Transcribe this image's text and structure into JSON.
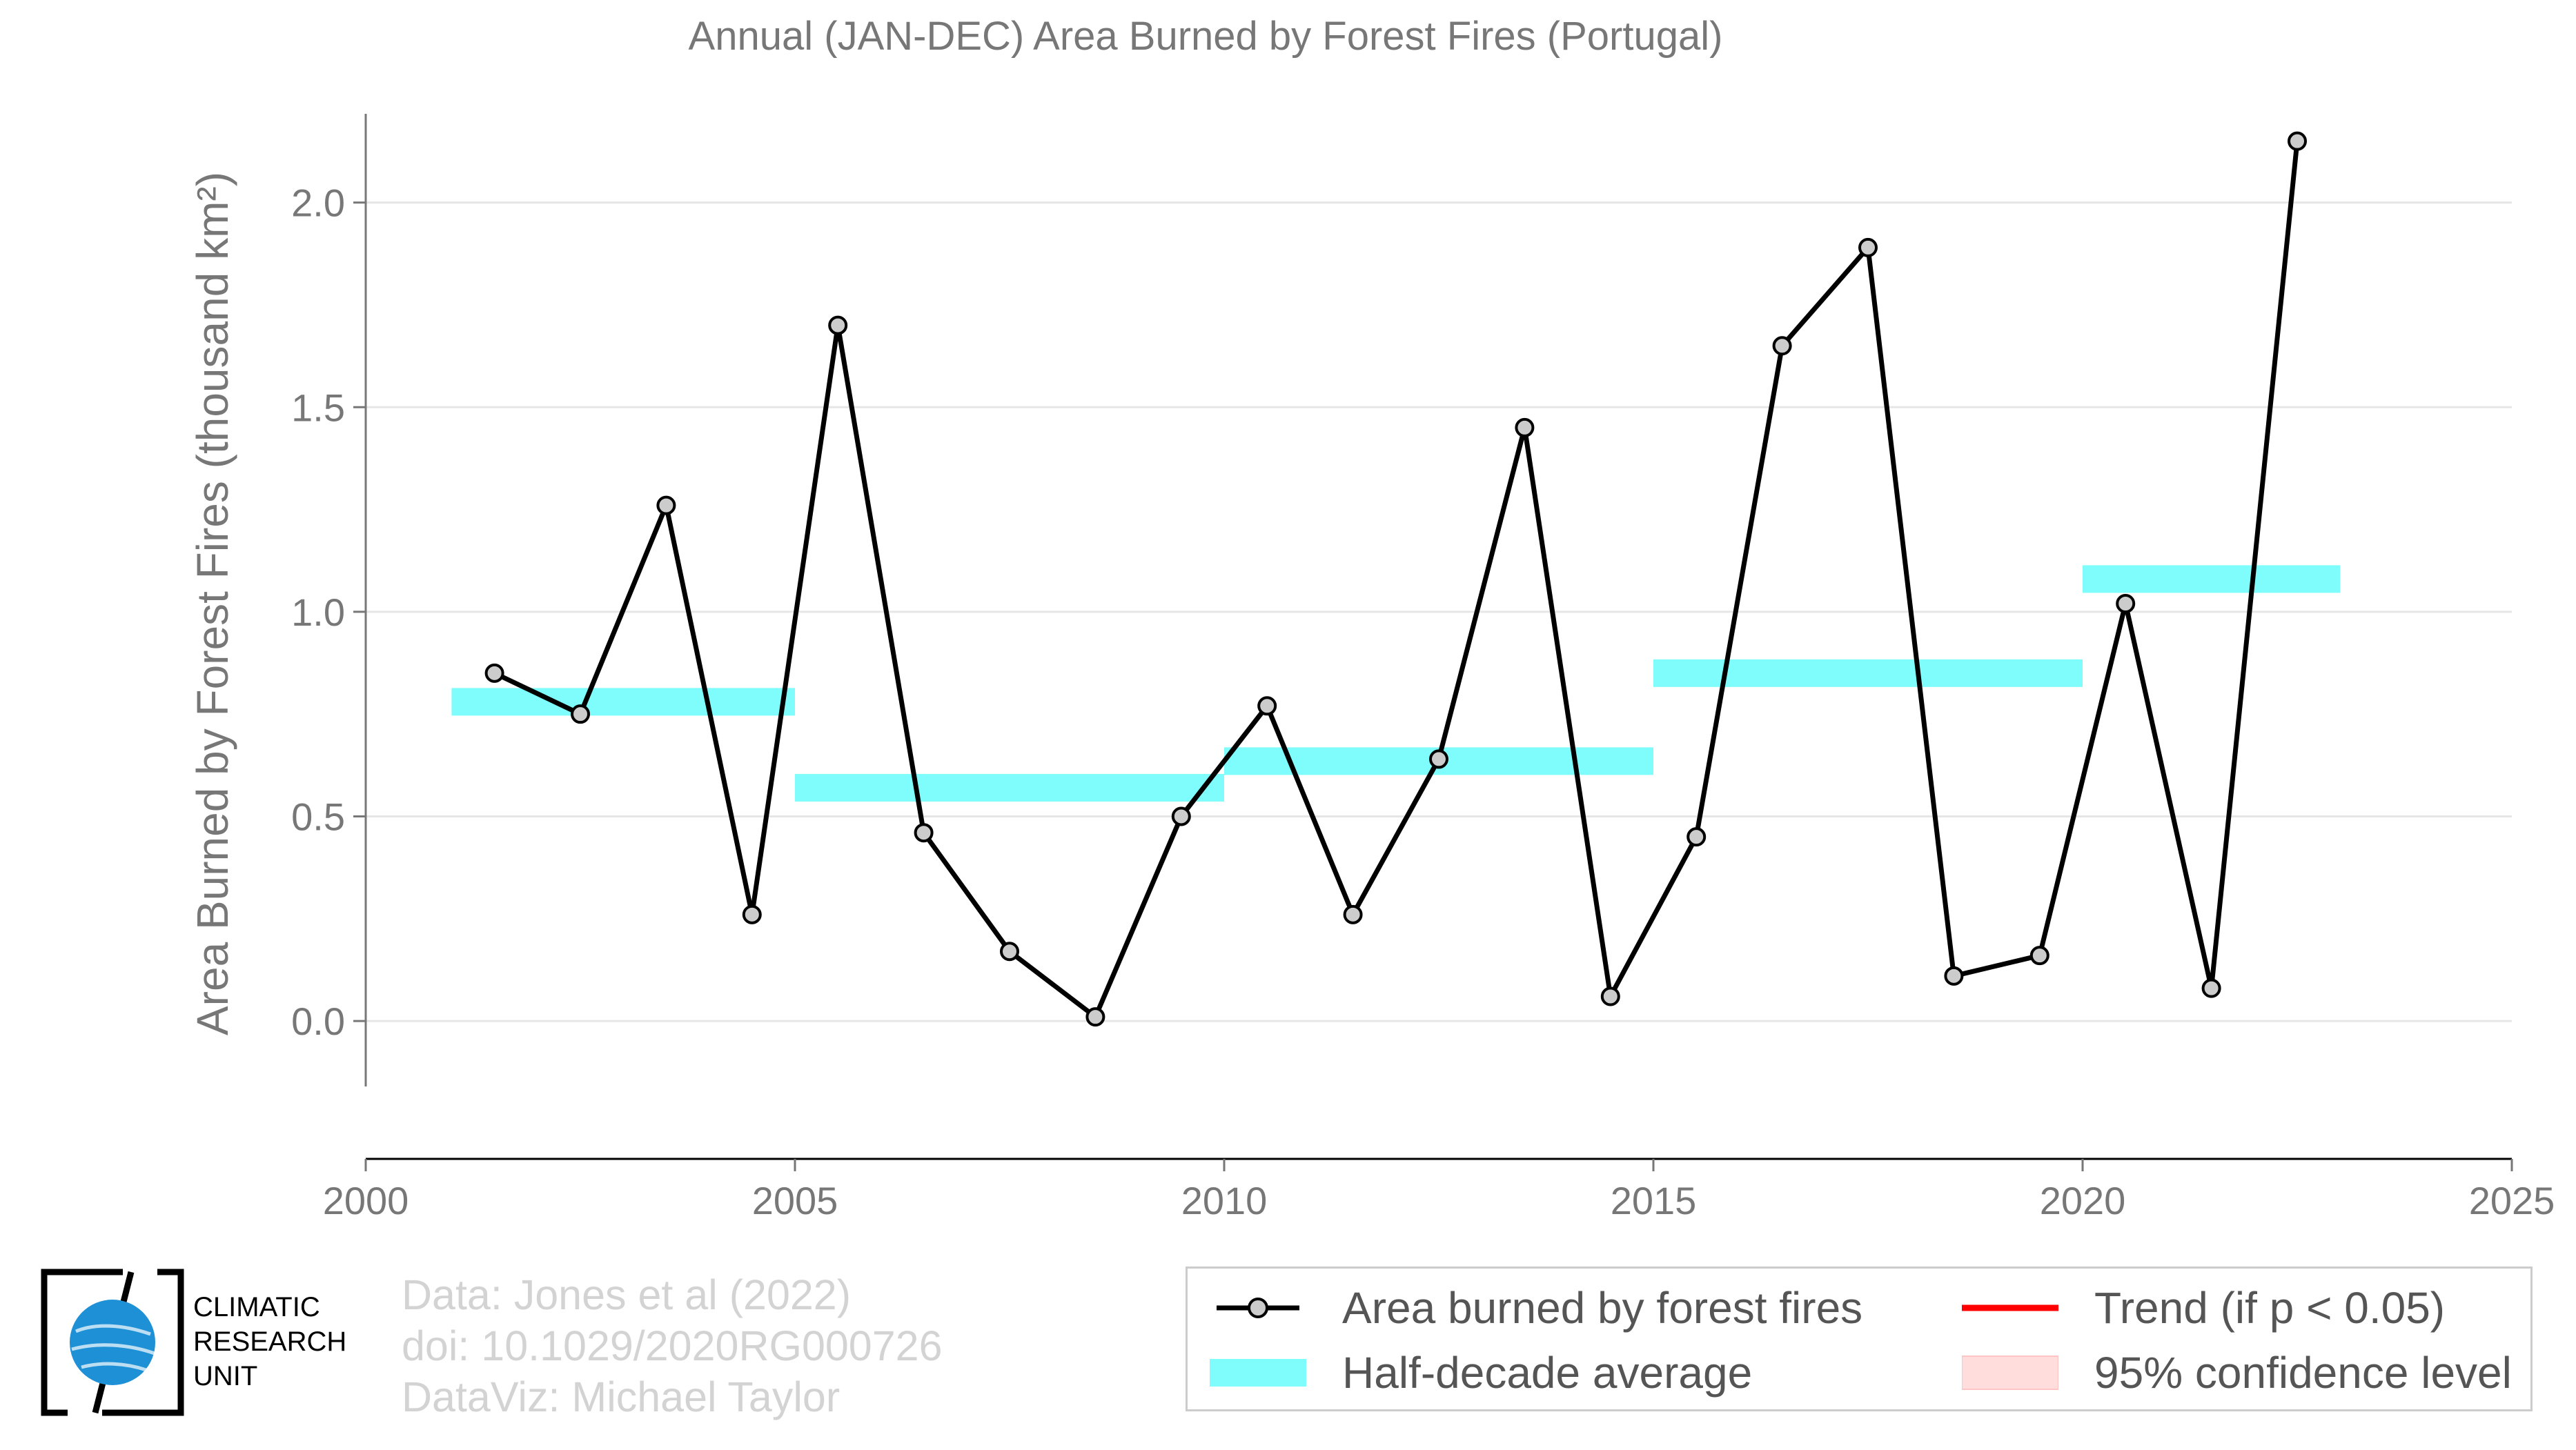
{
  "chart_data": {
    "type": "line",
    "title": "Annual (JAN-DEC) Area Burned by Forest Fires (Portugal)",
    "ylabel": "Area Burned by Forest Fires (thousand km²)",
    "xlabel": "",
    "xlim": [
      2000,
      2025
    ],
    "ylim": [
      -0.16,
      2.2
    ],
    "xticks": [
      2000,
      2005,
      2010,
      2015,
      2020,
      2025
    ],
    "yticks": [
      0.0,
      0.5,
      1.0,
      1.5,
      2.0
    ],
    "grid": "horizontal",
    "legend_position": "bottom-right",
    "series": [
      {
        "name": "Area burned by forest fires",
        "color": "#000000",
        "marker_fill": "#cccccc",
        "x": [
          2001.5,
          2002.5,
          2003.5,
          2004.5,
          2005.5,
          2006.5,
          2007.5,
          2008.5,
          2009.5,
          2010.5,
          2011.5,
          2012.5,
          2013.5,
          2014.5,
          2015.5,
          2016.5,
          2017.5,
          2018.5,
          2019.5,
          2020.5,
          2021.5,
          2022.5
        ],
        "values": [
          0.85,
          0.75,
          1.26,
          0.26,
          1.7,
          0.46,
          0.17,
          0.01,
          0.5,
          0.77,
          0.26,
          0.64,
          1.45,
          0.06,
          0.45,
          1.65,
          1.89,
          0.11,
          0.16,
          1.02,
          0.08,
          2.15
        ]
      },
      {
        "name": "Half-decade average",
        "color": "#7ffcfc",
        "segments": [
          {
            "x": [
              2001,
              2005
            ],
            "value": 0.78
          },
          {
            "x": [
              2005,
              2010
            ],
            "value": 0.57
          },
          {
            "x": [
              2010,
              2015
            ],
            "value": 0.635
          },
          {
            "x": [
              2015,
              2020
            ],
            "value": 0.85
          },
          {
            "x": [
              2020,
              2023
            ],
            "value": 1.08
          }
        ]
      }
    ]
  },
  "legend": {
    "items": [
      {
        "label": "Area burned by forest fires",
        "symbol": "line-marker",
        "color": "#000000"
      },
      {
        "label": "Trend (if p < 0.05)",
        "symbol": "line",
        "color": "#ff0000"
      },
      {
        "label": "Half-decade average",
        "symbol": "band",
        "color": "#7ffcfc"
      },
      {
        "label": "95% confidence level",
        "symbol": "band",
        "color": "#ffdddd"
      }
    ]
  },
  "credits": {
    "line1": "Data: Jones et al (2022)",
    "line2": "doi: 10.1029/2020RG000726",
    "line3": "DataViz: Michael Taylor"
  },
  "logo": {
    "line1": "CLIMATIC",
    "line2": "RESEARCH",
    "line3": "UNIT",
    "color": "#1e90d6"
  }
}
